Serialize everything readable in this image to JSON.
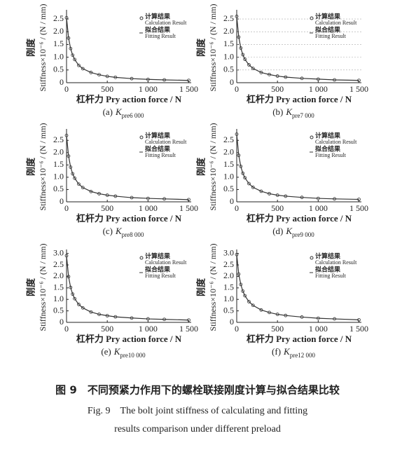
{
  "chart_data": [
    {
      "type": "line",
      "label": "(a)",
      "k_symbol": "K",
      "k_sub": "pre6 000",
      "y_label_cn": "刚度",
      "y_label": "Stiffness×10⁻⁶ / (N / mm)",
      "x_label": "杠杆力 Pry action force / N",
      "xlim": [
        0,
        1530
      ],
      "xticks": [
        0,
        500,
        {
          "value": 1000,
          "label": "1 000"
        },
        {
          "value": 1500,
          "label": "1 500"
        }
      ],
      "ylim": [
        0,
        2.75
      ],
      "yticks": [
        0,
        0.5,
        {
          "value": 1,
          "label": "1.0"
        },
        1.5,
        {
          "value": 2,
          "label": "2.0"
        },
        2.5
      ],
      "grid": false,
      "x": [
        0,
        25,
        50,
        75,
        100,
        150,
        200,
        300,
        400,
        500,
        600,
        800,
        1000,
        1200,
        1500
      ],
      "series": [
        {
          "name": "计算结果",
          "name_en": "Calculation Result",
          "marker": "circle",
          "color": "#333333",
          "values": [
            2.55,
            1.75,
            1.34,
            1.08,
            0.91,
            0.68,
            0.55,
            0.4,
            0.31,
            0.25,
            0.21,
            0.16,
            0.13,
            0.11,
            0.09
          ]
        },
        {
          "name": "拟合结果",
          "name_en": "Fitting Result",
          "marker": "line",
          "color": "#333333",
          "values": [
            2.55,
            1.75,
            1.34,
            1.08,
            0.91,
            0.68,
            0.55,
            0.4,
            0.31,
            0.25,
            0.21,
            0.16,
            0.13,
            0.11,
            0.09
          ]
        }
      ]
    },
    {
      "type": "line",
      "label": "(b)",
      "k_symbol": "K",
      "k_sub": "pre7 000",
      "y_label_cn": "刚度",
      "y_label": "Stiffness×10⁻⁶ / (N / mm)",
      "x_label": "杠杆力 Pry action force / N",
      "xlim": [
        0,
        1530
      ],
      "xticks": [
        0,
        500,
        {
          "value": 1000,
          "label": "1 000"
        },
        {
          "value": 1500,
          "label": "1 500"
        }
      ],
      "ylim": [
        0,
        2.75
      ],
      "yticks": [
        0,
        0.5,
        {
          "value": 1,
          "label": "1.0"
        },
        1.5,
        {
          "value": 2,
          "label": "2.0"
        },
        2.5
      ],
      "grid": true,
      "x": [
        0,
        25,
        50,
        75,
        100,
        150,
        200,
        300,
        400,
        500,
        600,
        800,
        1000,
        1200,
        1500
      ],
      "series": [
        {
          "name": "计算结果",
          "name_en": "Calculation Result",
          "marker": "circle",
          "color": "#333333",
          "values": [
            2.6,
            1.79,
            1.36,
            1.1,
            0.92,
            0.7,
            0.56,
            0.4,
            0.32,
            0.26,
            0.22,
            0.17,
            0.14,
            0.11,
            0.09
          ]
        },
        {
          "name": "拟合结果",
          "name_en": "Fitting Result",
          "marker": "line",
          "color": "#333333",
          "values": [
            2.6,
            1.79,
            1.36,
            1.1,
            0.92,
            0.7,
            0.56,
            0.4,
            0.32,
            0.26,
            0.22,
            0.17,
            0.14,
            0.11,
            0.09
          ]
        }
      ]
    },
    {
      "type": "line",
      "label": "(c)",
      "k_symbol": "K",
      "k_sub": "pre8 000",
      "y_label_cn": "刚度",
      "y_label": "Stiffness×10⁻⁶ / (N / mm)",
      "x_label": "杠杆力 Pry action force / N",
      "xlim": [
        0,
        1530
      ],
      "xticks": [
        0,
        500,
        {
          "value": 1000,
          "label": "1 000"
        },
        {
          "value": 1500,
          "label": "1 500"
        }
      ],
      "ylim": [
        0,
        2.85
      ],
      "yticks": [
        0,
        0.5,
        {
          "value": 1,
          "label": "1.0"
        },
        1.5,
        {
          "value": 2,
          "label": "2.0"
        },
        2.5
      ],
      "grid": false,
      "x": [
        0,
        25,
        50,
        75,
        100,
        150,
        200,
        300,
        400,
        500,
        600,
        800,
        1000,
        1200,
        1500
      ],
      "series": [
        {
          "name": "计算结果",
          "name_en": "Calculation Result",
          "marker": "circle",
          "color": "#333333",
          "values": [
            2.7,
            1.86,
            1.41,
            1.14,
            0.96,
            0.72,
            0.58,
            0.42,
            0.33,
            0.27,
            0.23,
            0.17,
            0.14,
            0.12,
            0.09
          ]
        },
        {
          "name": "拟合结果",
          "name_en": "Fitting Result",
          "marker": "line",
          "color": "#333333",
          "values": [
            2.7,
            1.86,
            1.41,
            1.14,
            0.96,
            0.72,
            0.58,
            0.42,
            0.33,
            0.27,
            0.23,
            0.17,
            0.14,
            0.12,
            0.09
          ]
        }
      ]
    },
    {
      "type": "line",
      "label": "(d)",
      "k_symbol": "K",
      "k_sub": "pre9 000",
      "y_label_cn": "刚度",
      "y_label": "Stiffness×10⁻⁶ / (N / mm)",
      "x_label": "杠杆力 Pry action force / N",
      "xlim": [
        0,
        1530
      ],
      "xticks": [
        0,
        500,
        {
          "value": 1000,
          "label": "1 000"
        },
        {
          "value": 1500,
          "label": "1 500"
        }
      ],
      "ylim": [
        0,
        2.85
      ],
      "yticks": [
        0,
        0.5,
        {
          "value": 1,
          "label": "1.0"
        },
        1.5,
        {
          "value": 2,
          "label": "2.0"
        },
        2.5
      ],
      "grid": false,
      "x": [
        0,
        25,
        50,
        75,
        100,
        150,
        200,
        300,
        400,
        500,
        600,
        800,
        1000,
        1200,
        1500
      ],
      "series": [
        {
          "name": "计算结果",
          "name_en": "Calculation Result",
          "marker": "circle",
          "color": "#333333",
          "values": [
            2.75,
            1.89,
            1.44,
            1.16,
            0.98,
            0.74,
            0.59,
            0.43,
            0.33,
            0.27,
            0.23,
            0.18,
            0.14,
            0.12,
            0.1
          ]
        },
        {
          "name": "拟合结果",
          "name_en": "Fitting Result",
          "marker": "line",
          "color": "#333333",
          "values": [
            2.75,
            1.89,
            1.44,
            1.16,
            0.98,
            0.74,
            0.59,
            0.43,
            0.33,
            0.27,
            0.23,
            0.18,
            0.14,
            0.12,
            0.1
          ]
        }
      ]
    },
    {
      "type": "line",
      "label": "(e)",
      "k_symbol": "K",
      "k_sub": "pre10 000",
      "y_label_cn": "刚度",
      "y_label": "Stiffness×10⁻⁶ / (N / mm)",
      "x_label": "杠杆力 Pry action force / N",
      "xlim": [
        0,
        1530
      ],
      "xticks": [
        0,
        500,
        {
          "value": 1000,
          "label": "1 000"
        },
        {
          "value": 1500,
          "label": "1 500"
        }
      ],
      "ylim": [
        0,
        3.05
      ],
      "yticks": [
        0,
        0.5,
        {
          "value": 1,
          "label": "1.0"
        },
        1.5,
        {
          "value": 2,
          "label": "2.0"
        },
        2.5,
        {
          "value": 3,
          "label": "3.0"
        }
      ],
      "grid": false,
      "x": [
        0,
        25,
        50,
        75,
        100,
        150,
        200,
        300,
        400,
        500,
        600,
        800,
        1000,
        1200,
        1500
      ],
      "series": [
        {
          "name": "计算结果",
          "name_en": "Calculation Result",
          "marker": "circle",
          "color": "#333333",
          "values": [
            2.9,
            1.99,
            1.52,
            1.23,
            1.03,
            0.78,
            0.63,
            0.45,
            0.35,
            0.29,
            0.24,
            0.19,
            0.15,
            0.13,
            0.1
          ]
        },
        {
          "name": "拟合结果",
          "name_en": "Fitting Result",
          "marker": "line",
          "color": "#333333",
          "values": [
            2.9,
            1.99,
            1.52,
            1.23,
            1.03,
            0.78,
            0.63,
            0.45,
            0.35,
            0.29,
            0.24,
            0.19,
            0.15,
            0.13,
            0.1
          ]
        }
      ]
    },
    {
      "type": "line",
      "label": "(f)",
      "k_symbol": "K",
      "k_sub": "pre12 000",
      "y_label_cn": "刚度",
      "y_label": "Stiffness×10⁻⁶ / (N / mm)",
      "x_label": "杠杆力 Pry action force / N",
      "xlim": [
        0,
        1530
      ],
      "xticks": [
        0,
        500,
        {
          "value": 1000,
          "label": "1 000"
        },
        {
          "value": 1500,
          "label": "1 500"
        }
      ],
      "ylim": [
        0,
        3.05
      ],
      "yticks": [
        0,
        0.5,
        {
          "value": 1,
          "label": "1.0"
        },
        1.5,
        {
          "value": 2,
          "label": "2.0"
        },
        2.5,
        {
          "value": 3,
          "label": "3.0"
        }
      ],
      "grid": false,
      "x": [
        0,
        25,
        50,
        75,
        100,
        150,
        200,
        300,
        400,
        500,
        600,
        800,
        1000,
        1200,
        1500
      ],
      "series": [
        {
          "name": "计算结果",
          "name_en": "Calculation Result",
          "marker": "circle",
          "color": "#333333",
          "values": [
            2.95,
            2.1,
            1.65,
            1.36,
            1.16,
            0.9,
            0.74,
            0.54,
            0.43,
            0.35,
            0.3,
            0.23,
            0.18,
            0.15,
            0.11
          ]
        },
        {
          "name": "拟合结果",
          "name_en": "Fitting Result",
          "marker": "line",
          "color": "#333333",
          "values": [
            2.95,
            2.1,
            1.65,
            1.36,
            1.16,
            0.9,
            0.74,
            0.54,
            0.43,
            0.35,
            0.3,
            0.23,
            0.18,
            0.15,
            0.11
          ]
        }
      ]
    }
  ],
  "caption": {
    "cn": "图 9　不同预紧力作用下的螺栓联接刚度计算与拟合结果比较",
    "en": [
      "Fig. 9　The bolt joint stiffness of calculating and fitting",
      "results comparison under different preload"
    ]
  }
}
